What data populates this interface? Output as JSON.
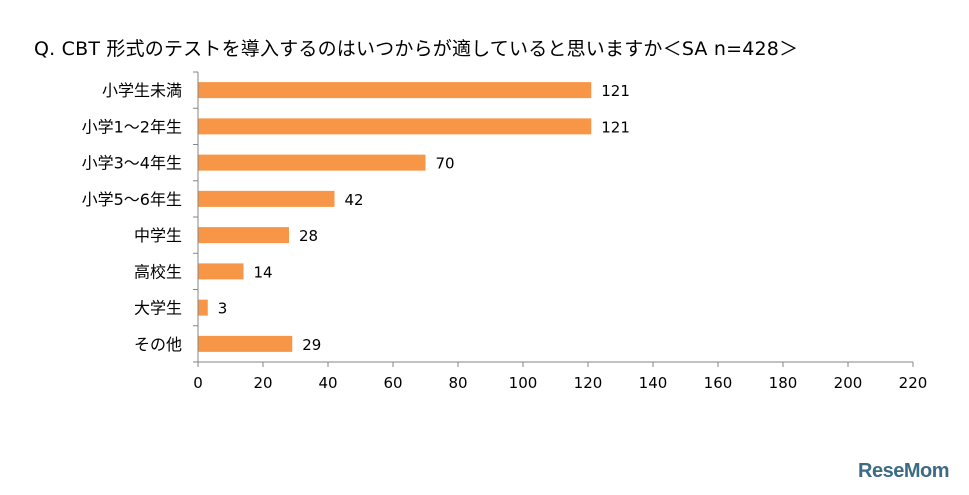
{
  "chart_data": {
    "type": "bar",
    "orientation": "horizontal",
    "title": "Q. CBT 形式のテストを導入するのはいつからが適していると思いますか＜SA n=428＞",
    "categories": [
      "小学生未満",
      "小学1～2年生",
      "小学3～4年生",
      "小学5～6年生",
      "中学生",
      "高校生",
      "大学生",
      "その他"
    ],
    "values": [
      121,
      121,
      70,
      42,
      28,
      14,
      3,
      29
    ],
    "xlim": [
      0,
      220
    ],
    "xticks": [
      0,
      20,
      40,
      60,
      80,
      100,
      120,
      140,
      160,
      180,
      200,
      220
    ],
    "xlabel": "",
    "ylabel": "",
    "grid": false,
    "bar_color": "#F79646"
  },
  "watermark": "ReseMom"
}
